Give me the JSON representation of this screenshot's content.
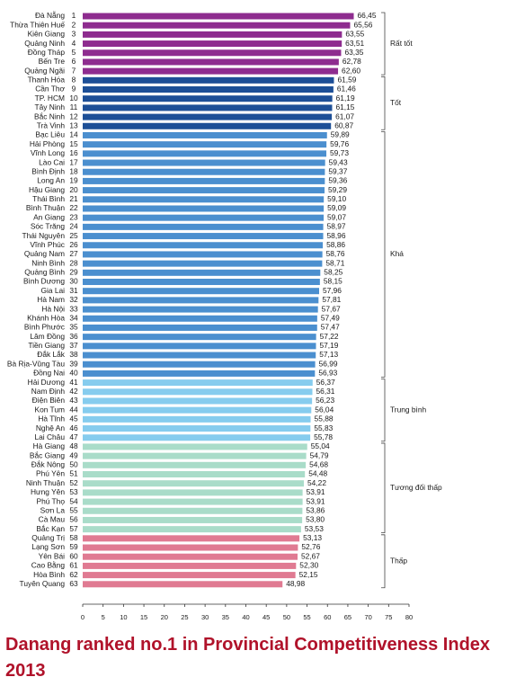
{
  "chart_data": {
    "type": "bar",
    "orientation": "horizontal",
    "title": "Danang ranked no.1 in Provincial Competitiveness Index 2013",
    "xlim": [
      0,
      80
    ],
    "xticks": [
      0,
      5,
      10,
      15,
      20,
      25,
      30,
      35,
      40,
      45,
      50,
      55,
      60,
      65,
      70,
      75,
      80
    ],
    "series": [
      {
        "name": "Rất tốt",
        "color": "#8e2c8f",
        "categories": [
          "Đà Nẵng",
          "Thừa Thiên Huế",
          "Kiên Giang",
          "Quảng Ninh",
          "Đồng Tháp",
          "Bến Tre",
          "Quảng Ngãi"
        ],
        "ranks": [
          1,
          2,
          3,
          4,
          5,
          6,
          7
        ],
        "values": [
          66.45,
          65.56,
          63.55,
          63.51,
          63.35,
          62.78,
          62.6
        ],
        "value_labels": [
          "66,45",
          "65,56",
          "63,55",
          "63,51",
          "63,35",
          "62,78",
          "62,60"
        ]
      },
      {
        "name": "Tốt",
        "color": "#1d4f97",
        "categories": [
          "Thanh Hóa",
          "Cần Thơ",
          "TP. HCM",
          "Tây Ninh",
          "Bắc Ninh",
          "Trà Vinh"
        ],
        "ranks": [
          8,
          9,
          10,
          11,
          12,
          13
        ],
        "values": [
          61.59,
          61.46,
          61.19,
          61.15,
          61.07,
          60.87
        ],
        "value_labels": [
          "61,59",
          "61,46",
          "61,19",
          "61,15",
          "61,07",
          "60,87"
        ]
      },
      {
        "name": "Khá",
        "color": "#4b8fcf",
        "categories": [
          "Bạc Liêu",
          "Hải Phòng",
          "Vĩnh Long",
          "Lào Cai",
          "Bình Định",
          "Long An",
          "Hậu Giang",
          "Thái Bình",
          "Bình Thuận",
          "An Giang",
          "Sóc Trăng",
          "Thái Nguyên",
          "Vĩnh Phúc",
          "Quảng Nam",
          "Ninh Bình",
          "Quảng Bình",
          "Bình Dương",
          "Gia Lai",
          "Hà Nam",
          "Hà Nội",
          "Khánh Hòa",
          "Bình Phước",
          "Lâm Đồng",
          "Tiền Giang",
          "Đắk Lắk",
          "Bà Rịa-Vũng Tàu",
          "Đồng Nai"
        ],
        "ranks": [
          14,
          15,
          16,
          17,
          18,
          19,
          20,
          21,
          22,
          23,
          24,
          25,
          26,
          27,
          28,
          29,
          30,
          31,
          32,
          33,
          34,
          35,
          36,
          37,
          38,
          39,
          40
        ],
        "values": [
          59.89,
          59.76,
          59.73,
          59.43,
          59.37,
          59.36,
          59.29,
          59.1,
          59.09,
          59.07,
          58.97,
          58.96,
          58.86,
          58.76,
          58.71,
          58.25,
          58.15,
          57.96,
          57.81,
          57.67,
          57.49,
          57.47,
          57.22,
          57.19,
          57.13,
          56.99,
          56.93
        ],
        "value_labels": [
          "59,89",
          "59,76",
          "59,73",
          "59,43",
          "59,37",
          "59,36",
          "59,29",
          "59,10",
          "59,09",
          "59,07",
          "58,97",
          "58,96",
          "58,86",
          "58,76",
          "58,71",
          "58,25",
          "58,15",
          "57,96",
          "57,81",
          "57,67",
          "57,49",
          "57,47",
          "57,22",
          "57,19",
          "57,13",
          "56,99",
          "56,93"
        ]
      },
      {
        "name": "Trung bình",
        "color": "#86ccee",
        "categories": [
          "Hải Dương",
          "Nam Định",
          "Điện Biên",
          "Kon Tum",
          "Hà Tĩnh",
          "Nghệ An",
          "Lai Châu"
        ],
        "ranks": [
          41,
          42,
          43,
          44,
          45,
          46,
          47
        ],
        "values": [
          56.37,
          56.31,
          56.23,
          56.04,
          55.88,
          55.83,
          55.78
        ],
        "value_labels": [
          "56,37",
          "56,31",
          "56,23",
          "56,04",
          "55,88",
          "55,83",
          "55,78"
        ]
      },
      {
        "name": "Tương đối thấp",
        "color": "#a9dcc9",
        "categories": [
          "Hà Giang",
          "Bắc Giang",
          "Đắk Nông",
          "Phú Yên",
          "Ninh Thuận",
          "Hưng Yên",
          "Phú Thọ",
          "Sơn La",
          "Cà Mau",
          "Bắc Kạn"
        ],
        "ranks": [
          48,
          49,
          50,
          51,
          52,
          53,
          54,
          55,
          56,
          57
        ],
        "values": [
          55.04,
          54.79,
          54.68,
          54.48,
          54.22,
          53.91,
          53.91,
          53.86,
          53.8,
          53.53
        ],
        "value_labels": [
          "55,04",
          "54,79",
          "54,68",
          "54,48",
          "54,22",
          "53,91",
          "53,91",
          "53,86",
          "53,80",
          "53,53"
        ]
      },
      {
        "name": "Thấp",
        "color": "#e07a92",
        "categories": [
          "Quảng Trị",
          "Lạng Sơn",
          "Yên Bái",
          "Cao Bằng",
          "Hòa Bình",
          "Tuyên Quang"
        ],
        "ranks": [
          58,
          59,
          60,
          61,
          62,
          63
        ],
        "values": [
          53.13,
          52.76,
          52.67,
          52.3,
          52.15,
          48.98
        ],
        "value_labels": [
          "53,13",
          "52,76",
          "52,67",
          "52,30",
          "52,15",
          "48,98"
        ]
      }
    ]
  }
}
